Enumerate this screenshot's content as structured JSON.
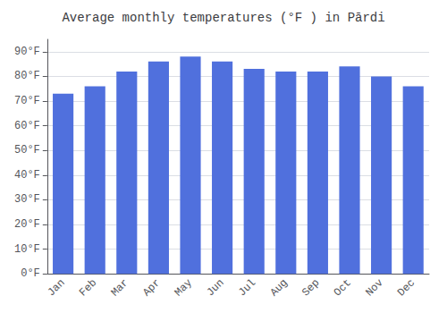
{
  "chart_data": {
    "type": "bar",
    "title": "Average monthly temperatures (°F ) in Pārdi",
    "categories": [
      "Jan",
      "Feb",
      "Mar",
      "Apr",
      "May",
      "Jun",
      "Jul",
      "Aug",
      "Sep",
      "Oct",
      "Nov",
      "Dec"
    ],
    "values": [
      73,
      76,
      82,
      86,
      88,
      86,
      83,
      82,
      82,
      84,
      80,
      76
    ],
    "ylim": [
      0,
      95
    ],
    "yticks": [
      {
        "value": 0,
        "label": "0°F"
      },
      {
        "value": 10,
        "label": "10°F"
      },
      {
        "value": 20,
        "label": "20°F"
      },
      {
        "value": 30,
        "label": "30°F"
      },
      {
        "value": 40,
        "label": "40°F"
      },
      {
        "value": 50,
        "label": "50°F"
      },
      {
        "value": 60,
        "label": "60°F"
      },
      {
        "value": 70,
        "label": "70°F"
      },
      {
        "value": 80,
        "label": "80°F"
      },
      {
        "value": 90,
        "label": "90°F"
      }
    ],
    "grid": true
  }
}
